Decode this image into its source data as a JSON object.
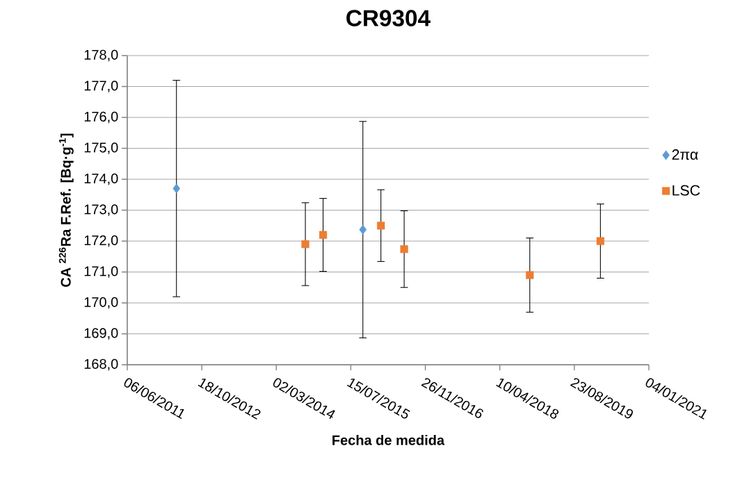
{
  "chart_data": {
    "type": "scatter",
    "title": "CR9304",
    "xlabel": "Fecha de medida",
    "ylabel": "CA $^{226}$Ra F.Ref. [Bq·g$^{-1}$]",
    "series": [
      {
        "name": "2πα",
        "color": "#5b9bd5",
        "marker": "diamond",
        "x": [
          "2012-05-01",
          "2015-10-04"
        ],
        "values": [
          173.7,
          172.37
        ],
        "errors": [
          3.5,
          3.5
        ]
      },
      {
        "name": "LSC",
        "color": "#ed7d31",
        "marker": "square",
        "x": [
          "2014-09-13",
          "2015-01-10",
          "2016-02-02",
          "2016-07-07",
          "2018-10-28",
          "2020-02-14"
        ],
        "values": [
          171.9,
          172.2,
          172.5,
          171.74,
          170.9,
          172.0
        ],
        "errors": [
          1.34,
          1.18,
          1.16,
          1.24,
          1.2,
          1.2
        ]
      }
    ],
    "xlim": [
      "2011-06-06",
      "2021-01-04"
    ],
    "xticks": [
      {
        "value": "2011-06-06",
        "label": "06/06/2011"
      },
      {
        "value": "2012-10-18",
        "label": "18/10/2012"
      },
      {
        "value": "2014-03-02",
        "label": "02/03/2014"
      },
      {
        "value": "2015-07-15",
        "label": "15/07/2015"
      },
      {
        "value": "2016-11-26",
        "label": "26/11/2016"
      },
      {
        "value": "2018-04-10",
        "label": "10/04/2018"
      },
      {
        "value": "2019-08-23",
        "label": "23/08/2019"
      },
      {
        "value": "2021-01-04",
        "label": "04/01/2021"
      }
    ],
    "ylim": [
      168,
      178
    ],
    "yticks": [
      {
        "value": 168,
        "label": "168,0"
      },
      {
        "value": 169,
        "label": "169,0"
      },
      {
        "value": 170,
        "label": "170,0"
      },
      {
        "value": 171,
        "label": "171,0"
      },
      {
        "value": 172,
        "label": "172,0"
      },
      {
        "value": 173,
        "label": "173,0"
      },
      {
        "value": 174,
        "label": "174,0"
      },
      {
        "value": 175,
        "label": "175,0"
      },
      {
        "value": 176,
        "label": "176,0"
      },
      {
        "value": 177,
        "label": "177,0"
      },
      {
        "value": 178,
        "label": "178,0"
      }
    ],
    "grid": "y",
    "legend": "right"
  }
}
